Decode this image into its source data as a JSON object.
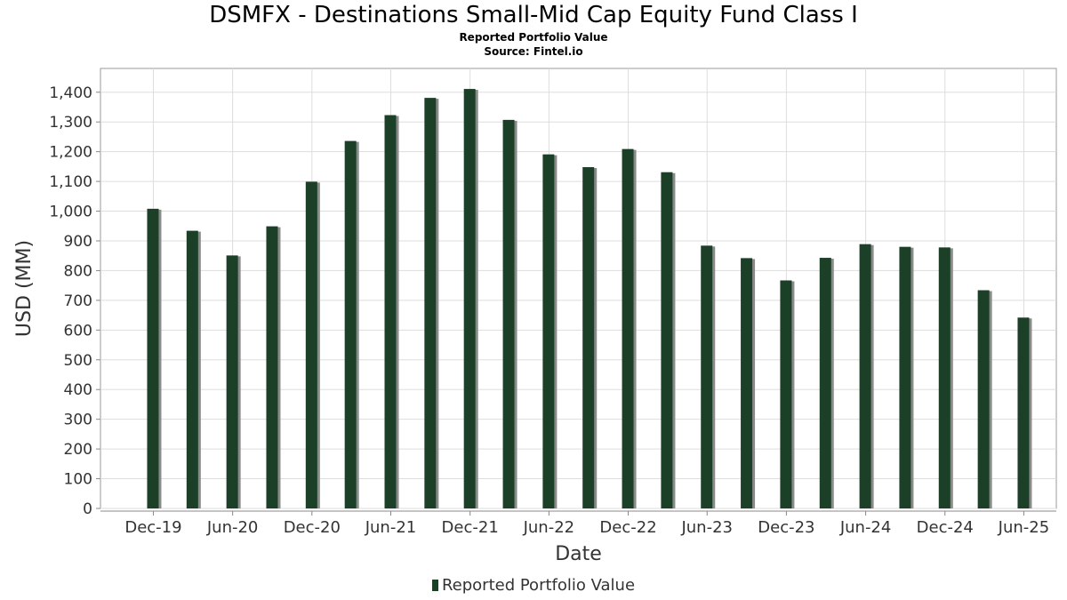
{
  "title": "DSMFX - Destinations Small-Mid Cap Equity Fund Class I",
  "subtitle_lines": [
    "Reported Portfolio Value",
    "Source: Fintel.io"
  ],
  "colors": {
    "bar": "#1b4027",
    "bar_shadow": "#8a8a8a",
    "grid": "#dddddd",
    "axis_text": "#333333"
  },
  "chart_data": {
    "type": "bar",
    "xlabel": "Date",
    "ylabel": "USD (MM)",
    "ylim": [
      0,
      1480
    ],
    "yticks": [
      0,
      100,
      200,
      300,
      400,
      500,
      600,
      700,
      800,
      900,
      1000,
      1100,
      1200,
      1300,
      1400
    ],
    "ytick_labels": [
      "0",
      "100",
      "200",
      "300",
      "400",
      "500",
      "600",
      "700",
      "800",
      "900",
      "1,000",
      "1,100",
      "1,200",
      "1,300",
      "1,400"
    ],
    "xlim": [
      "2019-08-01",
      "2025-08-15"
    ],
    "xticks": [
      "2019-12-01",
      "2020-06-01",
      "2020-12-01",
      "2021-06-01",
      "2021-12-01",
      "2022-06-01",
      "2022-12-01",
      "2023-06-01",
      "2023-12-01",
      "2024-06-01",
      "2024-12-01",
      "2025-06-01"
    ],
    "xtick_labels": [
      "Dec-19",
      "Jun-20",
      "Dec-20",
      "Jun-21",
      "Dec-21",
      "Jun-22",
      "Dec-22",
      "Jun-23",
      "Dec-23",
      "Jun-24",
      "Dec-24",
      "Jun-25"
    ],
    "grid": true,
    "legend_position": "bottom-center",
    "series": [
      {
        "name": "Reported Portfolio Value",
        "points": [
          {
            "x": "2019-11-30",
            "y": 1008
          },
          {
            "x": "2020-02-29",
            "y": 934
          },
          {
            "x": "2020-05-31",
            "y": 851
          },
          {
            "x": "2020-08-31",
            "y": 949
          },
          {
            "x": "2020-11-30",
            "y": 1099
          },
          {
            "x": "2021-02-28",
            "y": 1236
          },
          {
            "x": "2021-05-31",
            "y": 1323
          },
          {
            "x": "2021-08-31",
            "y": 1381
          },
          {
            "x": "2021-11-30",
            "y": 1411
          },
          {
            "x": "2022-02-28",
            "y": 1307
          },
          {
            "x": "2022-05-31",
            "y": 1191
          },
          {
            "x": "2022-08-31",
            "y": 1148
          },
          {
            "x": "2022-11-30",
            "y": 1209
          },
          {
            "x": "2023-02-28",
            "y": 1131
          },
          {
            "x": "2023-05-31",
            "y": 884
          },
          {
            "x": "2023-08-31",
            "y": 842
          },
          {
            "x": "2023-11-30",
            "y": 767
          },
          {
            "x": "2024-02-29",
            "y": 843
          },
          {
            "x": "2024-05-31",
            "y": 889
          },
          {
            "x": "2024-08-31",
            "y": 880
          },
          {
            "x": "2024-11-30",
            "y": 878
          },
          {
            "x": "2025-02-28",
            "y": 734
          },
          {
            "x": "2025-05-31",
            "y": 642
          }
        ]
      }
    ]
  }
}
